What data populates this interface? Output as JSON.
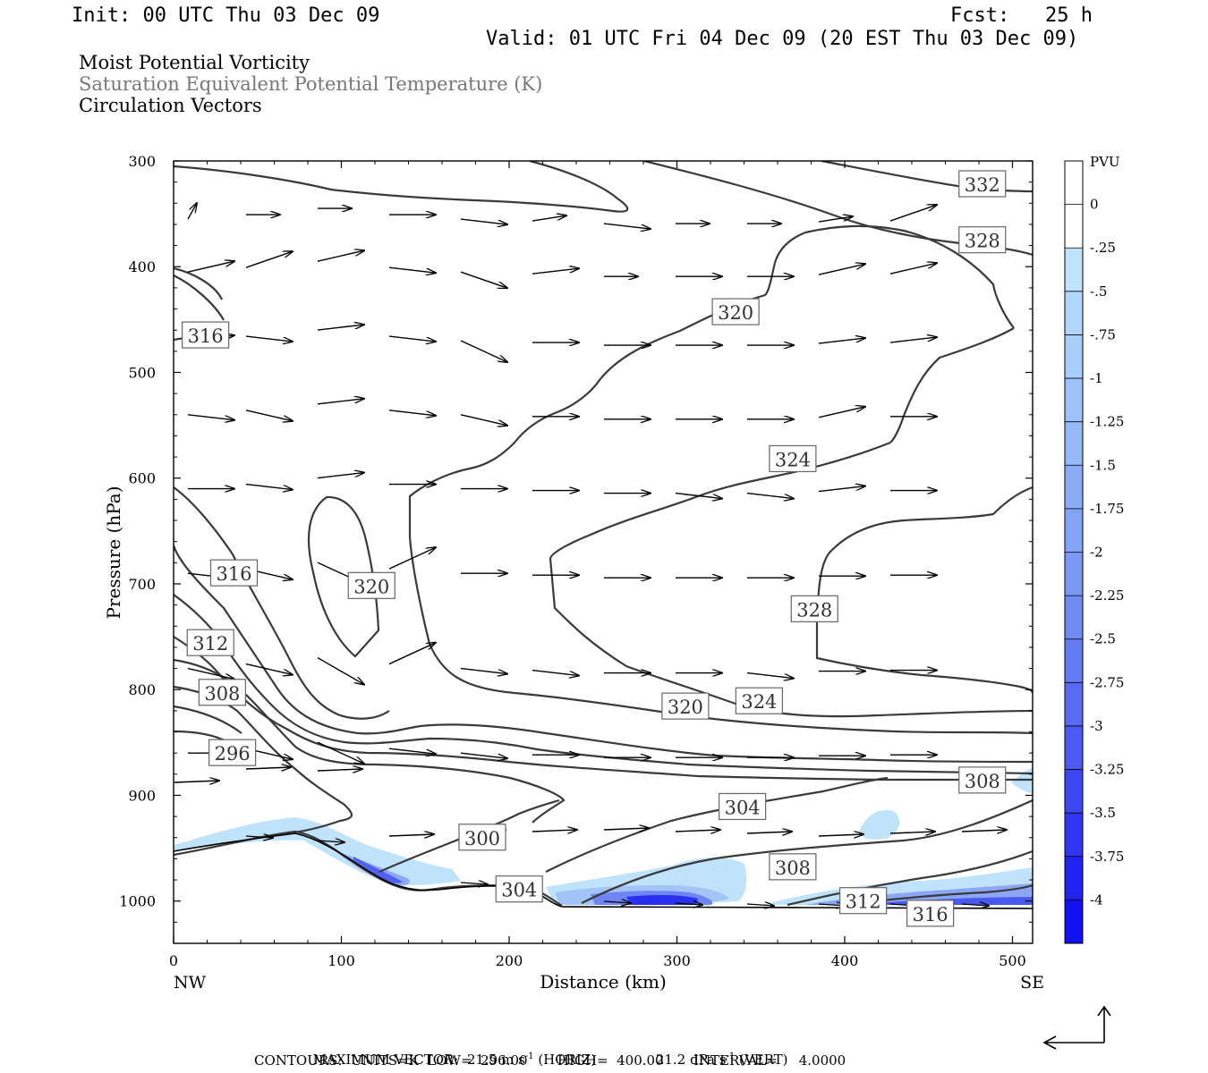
{
  "header": {
    "init": "Init: 00 UTC Thu 03 Dec 09",
    "fcst": "Fcst:   25 h",
    "valid": "Valid: 01 UTC Fri 04 Dec 09 (20 EST Thu 03 Dec 09)"
  },
  "fields": {
    "line1": "Moist Potential Vorticity",
    "line2": "Saturation Equivalent Potential Temperature (K)",
    "line3": "Circulation Vectors"
  },
  "footer": {
    "max_vector_label": "MAXIMUM VECTOR:",
    "horiz_value": "21.5 m s",
    "horiz_exp": "-1",
    "horiz_tag": "(HORIZ)",
    "vert_value": "21.2 dPa s",
    "vert_exp": "-1",
    "vert_tag": "(VERT)",
    "contours": "CONTOURS:  UNITS=K  LOW=  296.00       HIGH=  400.00       INTERVAL=     4.0000"
  },
  "colors": {
    "contour": "#3a3a3a",
    "arrow": "#000000",
    "mpv_light": "#bfe3fb",
    "mpv_dark": "#1010f0"
  },
  "chart_data": {
    "type": "contour",
    "x_axis": {
      "label": "Distance (km)",
      "range": [
        0,
        512
      ],
      "ticks": [
        0,
        100,
        200,
        300,
        400,
        500
      ],
      "tick_labels": [
        "0",
        "100",
        "200",
        "300",
        "400",
        "500"
      ],
      "left_end_label": "NW",
      "right_end_label": "SE"
    },
    "y_axis": {
      "label": "Pressure (hPa)",
      "range": [
        300,
        1040
      ],
      "inverted": true,
      "ticks": [
        300,
        400,
        500,
        600,
        700,
        800,
        900,
        1000
      ],
      "tick_labels": [
        "300",
        "400",
        "500",
        "600",
        "700",
        "800",
        "900",
        "1000"
      ]
    },
    "colorbar": {
      "unit": "PVU",
      "levels": [
        "0",
        "-.25",
        "-.5",
        "-.75",
        "-1",
        "-1.25",
        "-1.5",
        "-1.75",
        "-2",
        "-2.25",
        "-2.5",
        "-2.75",
        "-3",
        "-3.25",
        "-3.5",
        "-3.75",
        "-4"
      ],
      "colors": [
        "#ffffff",
        "#ffffff",
        "#bfe3fb",
        "#b2d6fa",
        "#a8cdf9",
        "#9ec2f8",
        "#95b8f7",
        "#8cadf6",
        "#83a3f5",
        "#7a98f4",
        "#6f8af3",
        "#647bf3",
        "#586bf2",
        "#4b5af2",
        "#3e48f1",
        "#3036f1",
        "#2223f0",
        "#1010f0"
      ]
    },
    "contour_labels": [
      {
        "text": "332",
        "x": 482,
        "p": 322
      },
      {
        "text": "328",
        "x": 482,
        "p": 375
      },
      {
        "text": "320",
        "x": 335,
        "p": 443
      },
      {
        "text": "316",
        "x": 19,
        "p": 465
      },
      {
        "text": "324",
        "x": 369,
        "p": 582
      },
      {
        "text": "316",
        "x": 36,
        "p": 690
      },
      {
        "text": "320",
        "x": 118,
        "p": 702
      },
      {
        "text": "328",
        "x": 382,
        "p": 724
      },
      {
        "text": "312",
        "x": 22,
        "p": 756
      },
      {
        "text": "308",
        "x": 29,
        "p": 803
      },
      {
        "text": "324",
        "x": 349,
        "p": 811
      },
      {
        "text": "320",
        "x": 305,
        "p": 816
      },
      {
        "text": "296",
        "x": 35,
        "p": 860
      },
      {
        "text": "308",
        "x": 482,
        "p": 886
      },
      {
        "text": "304",
        "x": 339,
        "p": 911
      },
      {
        "text": "300",
        "x": 184,
        "p": 940
      },
      {
        "text": "308",
        "x": 369,
        "p": 968
      },
      {
        "text": "304",
        "x": 206,
        "p": 989
      },
      {
        "text": "312",
        "x": 411,
        "p": 1000
      },
      {
        "text": "316",
        "x": 451,
        "p": 1012
      }
    ]
  }
}
